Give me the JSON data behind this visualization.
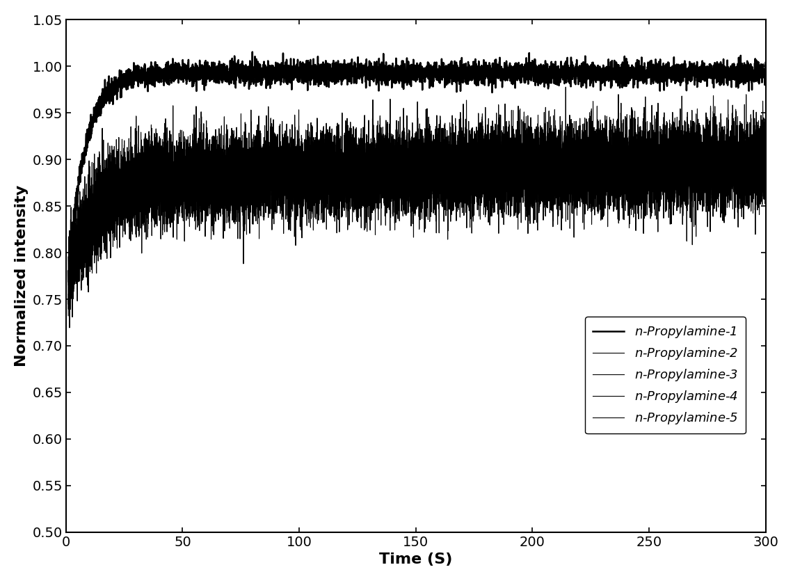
{
  "title": "",
  "xlabel": "Time (S)",
  "ylabel": "Normalized intensity",
  "xlim": [
    0,
    300
  ],
  "ylim": [
    0.5,
    1.05
  ],
  "yticks": [
    0.5,
    0.55,
    0.6,
    0.65,
    0.7,
    0.75,
    0.8,
    0.85,
    0.9,
    0.95,
    1.0,
    1.05
  ],
  "xticks": [
    0,
    50,
    100,
    150,
    200,
    250,
    300
  ],
  "legend_labels": [
    "$n$-Propylamine-1",
    "$n$-Propylamine-2",
    "$n$-Propylamine-3",
    "$n$-Propylamine-4",
    "$n$-Propylamine-5"
  ],
  "line_color": "#000000",
  "background_color": "#ffffff",
  "xlabel_fontsize": 16,
  "ylabel_fontsize": 16,
  "tick_fontsize": 14,
  "legend_fontsize": 13,
  "curve_params": [
    {
      "plateau": 0.993,
      "rise_rate": 0.14,
      "noise_amp": 0.006,
      "start": 0.77,
      "slow_rise": 0.0,
      "slow_rate": 0.0
    },
    {
      "plateau": 0.88,
      "rise_rate": 0.11,
      "noise_amp": 0.022,
      "start": 0.77,
      "slow_rise": 0.075,
      "slow_rate": 0.012
    },
    {
      "plateau": 0.878,
      "rise_rate": 0.1,
      "noise_amp": 0.022,
      "start": 0.77,
      "slow_rise": 0.078,
      "slow_rate": 0.01
    },
    {
      "plateau": 0.876,
      "rise_rate": 0.09,
      "noise_amp": 0.022,
      "start": 0.77,
      "slow_rise": 0.08,
      "slow_rate": 0.009
    },
    {
      "plateau": 0.874,
      "rise_rate": 0.085,
      "noise_amp": 0.022,
      "start": 0.77,
      "slow_rise": 0.082,
      "slow_rate": 0.008
    }
  ],
  "noise_seed": 7
}
